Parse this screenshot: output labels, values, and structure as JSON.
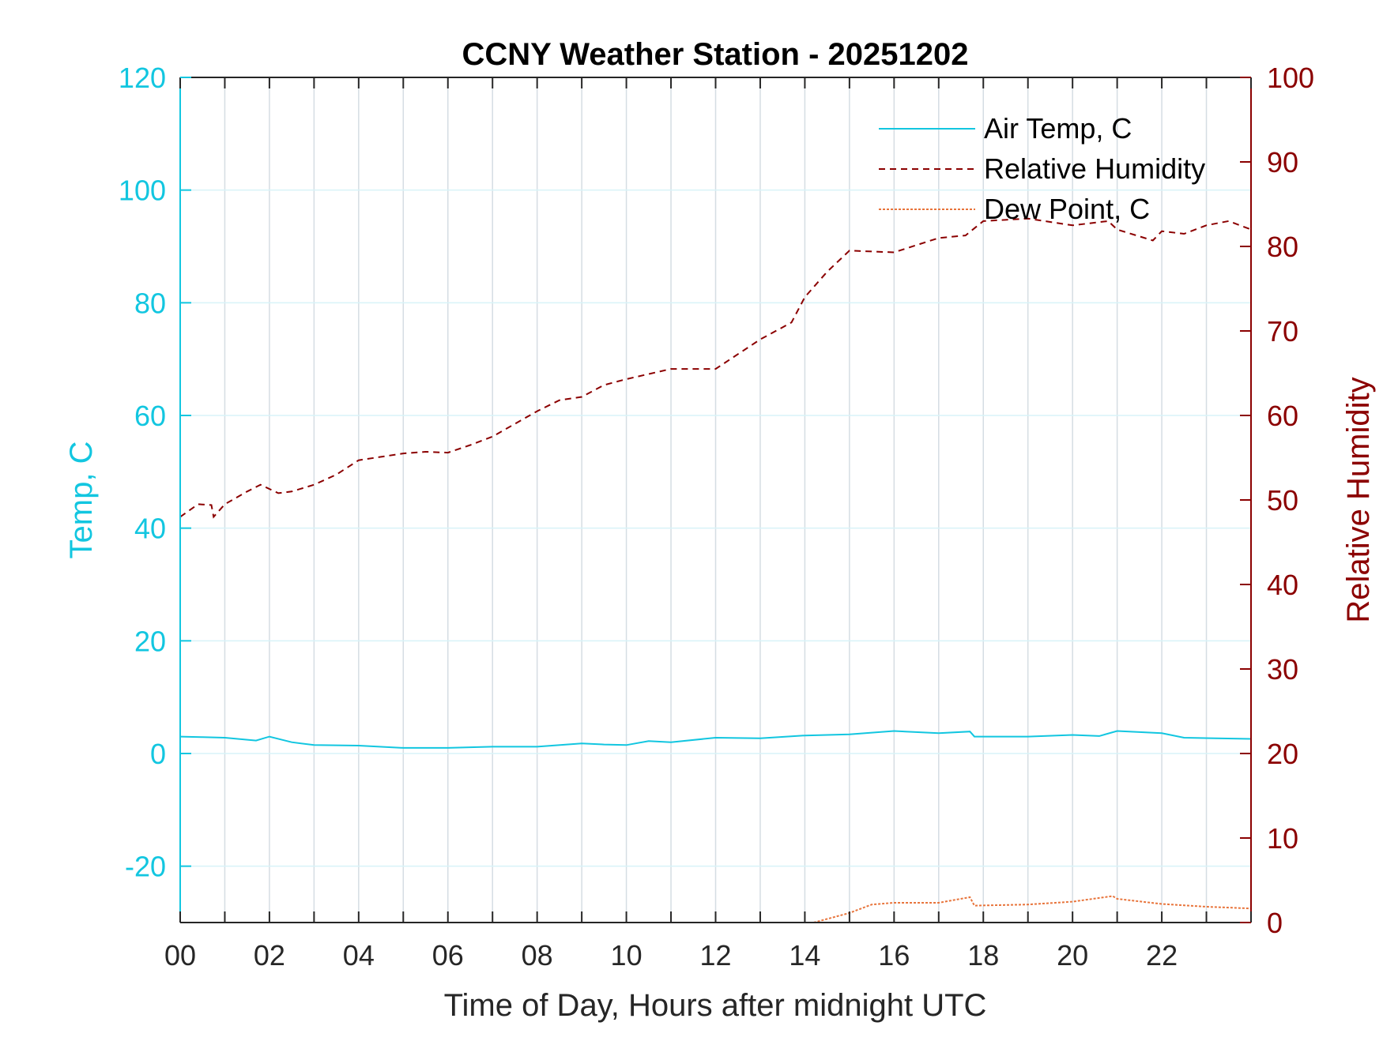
{
  "chart_data": {
    "type": "line",
    "title": "CCNY Weather Station - 20251202",
    "xlabel": "Time of Day, Hours after midnight UTC",
    "ylabel_left": "Temp, C",
    "ylabel_right": "Relative Humidity",
    "xlim": [
      0,
      24
    ],
    "ylim_left": [
      -30,
      120
    ],
    "ylim_right": [
      0,
      100
    ],
    "x_ticks": [
      0,
      2,
      4,
      6,
      8,
      10,
      12,
      14,
      16,
      18,
      20,
      22
    ],
    "x_tick_labels": [
      "00",
      "02",
      "04",
      "06",
      "08",
      "10",
      "12",
      "14",
      "16",
      "18",
      "20",
      "22"
    ],
    "y_left_ticks": [
      -20,
      0,
      20,
      40,
      60,
      80,
      100,
      120
    ],
    "y_left_tick_labels": [
      "-20",
      "0",
      "20",
      "40",
      "60",
      "80",
      "100",
      "120"
    ],
    "y_right_ticks": [
      0,
      10,
      20,
      30,
      40,
      50,
      60,
      70,
      80,
      90,
      100
    ],
    "y_right_tick_labels": [
      "0",
      "10",
      "20",
      "30",
      "40",
      "50",
      "60",
      "70",
      "80",
      "90",
      "100"
    ],
    "grid": true,
    "legend_placement": "top-right",
    "colors": {
      "left_axis": "#12c6e0",
      "right_axis": "#8b0000",
      "dew": "#e8743b",
      "grid": "#d5dde3"
    },
    "series": [
      {
        "name": "Air Temp, C",
        "axis": "left",
        "style": "solid",
        "color": "#12c6e0",
        "x": [
          0,
          0.5,
          1,
          1.7,
          2,
          2.5,
          3,
          4,
          5,
          6,
          7,
          8,
          9,
          9.5,
          10,
          10.5,
          11,
          12,
          13,
          14,
          15,
          16,
          17,
          17.7,
          17.8,
          19,
          20,
          20.6,
          21,
          22,
          22.5,
          24
        ],
        "y": [
          3.0,
          2.9,
          2.8,
          2.3,
          3.0,
          2.0,
          1.5,
          1.4,
          1.0,
          1.0,
          1.2,
          1.2,
          1.8,
          1.6,
          1.5,
          2.2,
          2.0,
          2.8,
          2.7,
          3.2,
          3.4,
          4.0,
          3.6,
          3.9,
          3.0,
          3.0,
          3.3,
          3.1,
          4.0,
          3.6,
          2.8,
          2.6
        ]
      },
      {
        "name": "Relative Humidity",
        "axis": "right",
        "style": "dashed",
        "color": "#8b0000",
        "x": [
          0,
          0.4,
          0.7,
          0.75,
          1,
          1.5,
          1.8,
          2.2,
          2.5,
          3,
          3.5,
          4,
          5,
          5.5,
          6,
          6.5,
          7,
          7.5,
          8,
          8.5,
          9,
          9.5,
          10,
          11,
          12,
          13,
          13.7,
          14,
          14.5,
          15,
          16,
          17,
          17.6,
          18,
          19,
          20,
          20.8,
          21,
          21.8,
          22,
          22.5,
          23,
          23.5,
          24
        ],
        "y": [
          48,
          49.5,
          49.4,
          48,
          49.5,
          51,
          51.8,
          50.8,
          51,
          51.8,
          53,
          54.7,
          55.5,
          55.7,
          55.6,
          56.5,
          57.5,
          59,
          60.5,
          61.8,
          62.2,
          63.6,
          64.3,
          65.5,
          65.5,
          69,
          71,
          74,
          77,
          79.5,
          79.3,
          81,
          81.3,
          83,
          83.3,
          82.5,
          83,
          82,
          80.7,
          81.8,
          81.5,
          82.5,
          83,
          82
        ]
      },
      {
        "name": "Dew Point, C",
        "axis": "left",
        "style": "dotted",
        "color": "#e8743b",
        "x": [
          14.2,
          15,
          15.5,
          16,
          17,
          17.7,
          17.8,
          19,
          20,
          20.9,
          21,
          22,
          23,
          24
        ],
        "y": [
          -30,
          -28.3,
          -26.8,
          -26.5,
          -26.5,
          -25.5,
          -27,
          -26.8,
          -26.3,
          -25.3,
          -25.8,
          -26.7,
          -27.2,
          -27.5
        ]
      }
    ]
  }
}
